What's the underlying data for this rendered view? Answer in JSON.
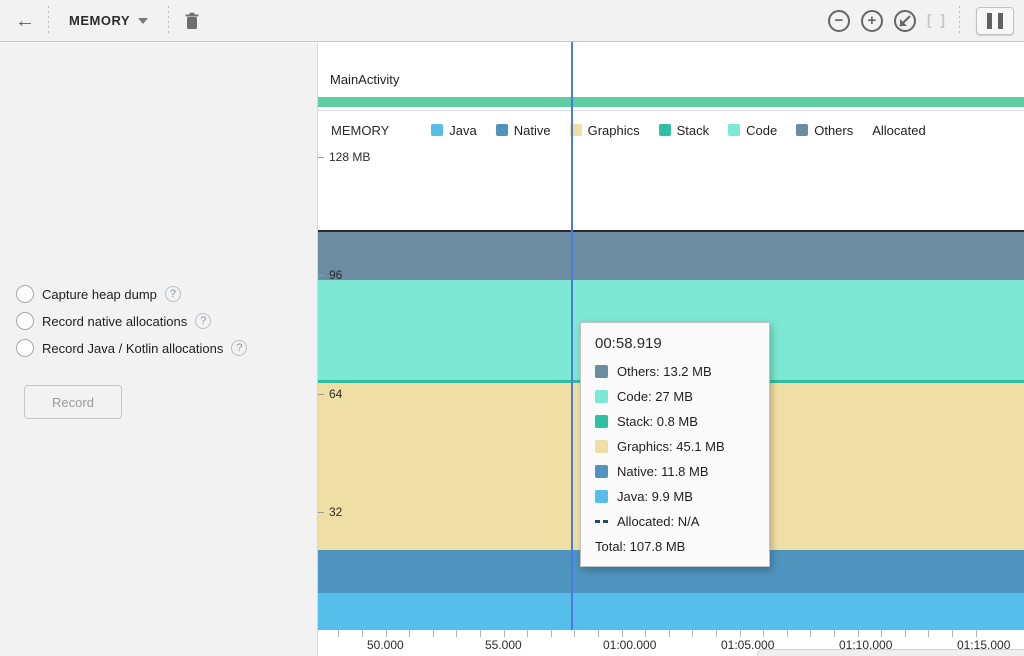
{
  "toolbar": {
    "back_icon_glyph": "←",
    "profiler_selector_label": "MEMORY",
    "zoom_out_glyph": "−",
    "zoom_in_glyph": "+",
    "zoom_selection_glyph": "[ ]"
  },
  "left_panel": {
    "options": [
      {
        "label": "Capture heap dump",
        "help_glyph": "?"
      },
      {
        "label": "Record native allocations",
        "help_glyph": "?"
      },
      {
        "label": "Record Java / Kotlin allocations",
        "help_glyph": "?"
      }
    ],
    "record_button_label": "Record"
  },
  "session": {
    "activity_name": "MainActivity",
    "activity_bar_color": "#5FCFA2"
  },
  "legend": {
    "title": "MEMORY",
    "items": [
      {
        "label": "Java",
        "color": "#55BEEA"
      },
      {
        "label": "Native",
        "color": "#4E94BE"
      },
      {
        "label": "Graphics",
        "color": "#F0DFA5"
      },
      {
        "label": "Stack",
        "color": "#2EBFA5"
      },
      {
        "label": "Code",
        "color": "#7DE8D3"
      },
      {
        "label": "Others",
        "color": "#6C8CA2"
      },
      {
        "label": "Allocated",
        "color": null
      }
    ]
  },
  "tooltip": {
    "time": "00:58.919",
    "rows": [
      {
        "label": "Others",
        "value": "13.2 MB",
        "swatch": "#6C8CA2"
      },
      {
        "label": "Code",
        "value": "27 MB",
        "swatch": "#7DE8D3"
      },
      {
        "label": "Stack",
        "value": "0.8 MB",
        "swatch": "#2EBFA5"
      },
      {
        "label": "Graphics",
        "value": "45.1 MB",
        "swatch": "#F0DFA5"
      },
      {
        "label": "Native",
        "value": "11.8 MB",
        "swatch": "#4E94BE"
      },
      {
        "label": "Java",
        "value": "9.9 MB",
        "swatch": "#55BEEA"
      },
      {
        "label": "Allocated",
        "value": "N/A",
        "swatch": "dashes"
      }
    ],
    "total_label": "Total",
    "total_value": "107.8 MB"
  },
  "chart_data": {
    "type": "area",
    "stacked": true,
    "title": "MEMORY",
    "ylabel": "MB",
    "ylim": [
      0,
      128
    ],
    "y_ticks": [
      {
        "value": 128,
        "label": "128 MB"
      },
      {
        "value": 96,
        "label": "96"
      },
      {
        "value": 64,
        "label": "64"
      },
      {
        "value": 32,
        "label": "32"
      }
    ],
    "x_major_ticks": [
      {
        "t": 50,
        "label": "50.000"
      },
      {
        "t": 55,
        "label": "55.000"
      },
      {
        "t": 60,
        "label": "01:00.000"
      },
      {
        "t": 65,
        "label": "01:05.000"
      },
      {
        "t": 70,
        "label": "01:10.000"
      },
      {
        "t": 75,
        "label": "01:15.000"
      }
    ],
    "x_minor_tick_interval_s": 1,
    "x_minor_tick_range_s": [
      49,
      76
    ],
    "cursor_time_s": 58.919,
    "cursor_time_label": "00:58.919",
    "series_bottom_to_top": [
      {
        "name": "Java",
        "color": "#55BEEA",
        "value_mb": 9.9
      },
      {
        "name": "Native",
        "color": "#4E94BE",
        "value_mb": 11.8
      },
      {
        "name": "Graphics",
        "color": "#F0DFA5",
        "value_mb": 45.1
      },
      {
        "name": "Stack",
        "color": "#2EBFA5",
        "value_mb": 0.8
      },
      {
        "name": "Code",
        "color": "#7DE8D3",
        "value_mb": 27
      },
      {
        "name": "Others",
        "color": "#6C8CA2",
        "value_mb": 13.2
      }
    ],
    "total_mb": 107.8,
    "allocated": "N/A",
    "total_line_color": "#2B2B2B",
    "cursor_line_color": "#4A79E8"
  }
}
